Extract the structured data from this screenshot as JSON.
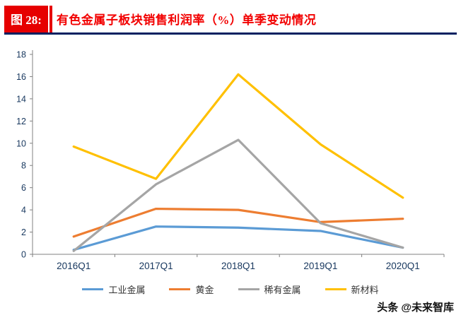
{
  "header": {
    "figure_label": "图 28:",
    "title": "有色金属子板块销售利润率（%）单季变动情况"
  },
  "watermark": "头条 @未来智库",
  "colors": {
    "badge_bg": "#e60000",
    "title_text": "#f20000",
    "underline": "#002060",
    "axis_text": "#17375e",
    "axis_line": "#808080",
    "legend_text": "#333333",
    "watermark_text": "#111111"
  },
  "chart_data": {
    "type": "line",
    "title": "有色金属子板块销售利润率（%）单季变动情况",
    "xlabel": "",
    "ylabel": "",
    "categories": [
      "2016Q1",
      "2017Q1",
      "2018Q1",
      "2019Q1",
      "2020Q1"
    ],
    "series": [
      {
        "name": "工业金属",
        "color": "#5B9BD5",
        "values": [
          0.4,
          2.5,
          2.4,
          2.1,
          0.6
        ]
      },
      {
        "name": "黄金",
        "color": "#ED7D31",
        "values": [
          1.6,
          4.1,
          4.0,
          2.9,
          3.2
        ]
      },
      {
        "name": "稀有金属",
        "color": "#A5A5A5",
        "values": [
          0.3,
          6.3,
          10.3,
          2.8,
          0.6
        ]
      },
      {
        "name": "新材料",
        "color": "#FFC000",
        "values": [
          9.7,
          6.8,
          16.2,
          9.9,
          5.1
        ]
      }
    ],
    "ylim": [
      0,
      18
    ],
    "ytick_step": 2,
    "grid": false,
    "legend_position": "bottom"
  }
}
